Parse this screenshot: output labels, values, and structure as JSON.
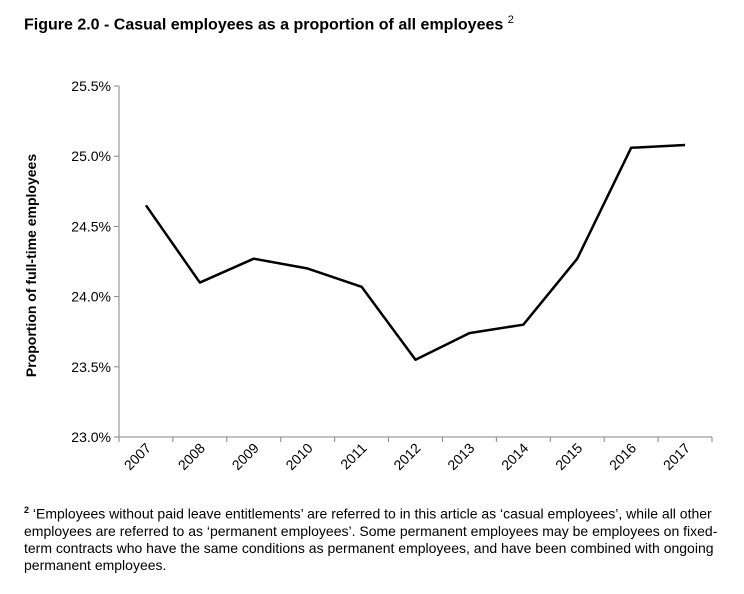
{
  "title": "Figure 2.0 - Casual employees as a proportion of all employees",
  "title_footnote_mark": "2",
  "footnote_mark": "2",
  "footnote": "‘Employees without paid leave entitlements’ are referred to in this article as ‘casual employees’, while all other employees are referred to as ‘permanent employees’. Some permanent employees may be employees on fixed-term contracts who have the same conditions as permanent employees, and have been combined with ongoing permanent employees.",
  "chart_data": {
    "type": "line",
    "title": "Figure 2.0 - Casual employees as a proportion of all employees",
    "xlabel": "",
    "ylabel": "Proportion of full-time employees",
    "categories": [
      "2007",
      "2008",
      "2009",
      "2010",
      "2011",
      "2012",
      "2013",
      "2014",
      "2015",
      "2016",
      "2017"
    ],
    "values": [
      24.65,
      24.1,
      24.27,
      24.2,
      24.07,
      23.55,
      23.74,
      23.8,
      24.27,
      25.06,
      25.08
    ],
    "ylim": [
      23.0,
      25.5
    ],
    "yticks": [
      23.0,
      23.5,
      24.0,
      24.5,
      25.0,
      25.5
    ],
    "ytick_labels": [
      "23.0%",
      "23.5%",
      "24.0%",
      "24.5%",
      "25.0%",
      "25.5%"
    ],
    "grid": false,
    "legend": "none",
    "line_color": "#000000",
    "axis_color": "#868686"
  }
}
